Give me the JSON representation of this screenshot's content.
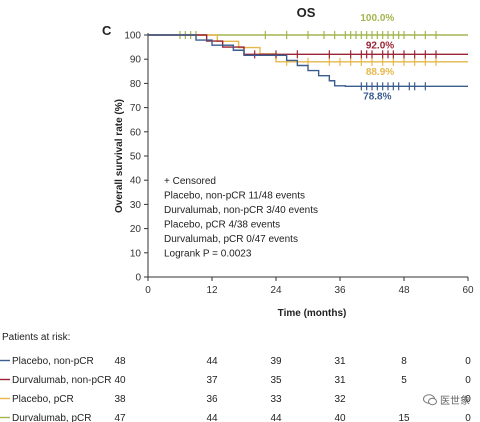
{
  "chart_data": {
    "type": "line",
    "panel_letter": "C",
    "title": "OS",
    "xlabel": "Time (months)",
    "ylabel": "Overall survival rate (%)",
    "xlim": [
      0,
      60
    ],
    "ylim": [
      0,
      100
    ],
    "xticks": [
      0,
      12,
      24,
      36,
      48,
      60
    ],
    "yticks": [
      0,
      10,
      20,
      30,
      40,
      50,
      60,
      70,
      80,
      90,
      100
    ],
    "grid": false,
    "series": [
      {
        "name": "Placebo, non-pCR",
        "color": "#3a5d8f",
        "x": [
          0,
          9,
          12,
          14,
          16,
          18,
          22,
          26,
          28,
          30,
          32,
          34,
          35,
          37,
          48,
          60
        ],
        "y": [
          100,
          97.9,
          95.8,
          95.8,
          93.7,
          91.6,
          91.6,
          89.5,
          87.4,
          85.3,
          83.2,
          81.1,
          79,
          78.8,
          78.8,
          78.8
        ],
        "end_label": "78.8%",
        "censor_x": [
          40,
          41,
          42,
          43,
          44,
          45,
          46,
          47,
          49,
          50,
          52
        ]
      },
      {
        "name": "Durvalumab, non-pCR",
        "color": "#9b2335",
        "x": [
          0,
          11,
          14,
          18,
          60
        ],
        "y": [
          100,
          97.5,
          95,
          92,
          92
        ],
        "end_label": "92.0%",
        "censor_x": [
          20,
          24,
          28,
          34,
          38,
          40,
          41,
          42,
          44,
          45,
          46,
          48,
          50,
          52,
          54
        ]
      },
      {
        "name": "Placebo, pCR",
        "color": "#e6b84c",
        "x": [
          0,
          13,
          17,
          21,
          24,
          60
        ],
        "y": [
          100,
          97.4,
          94.8,
          92.2,
          88.9,
          88.9
        ],
        "end_label": "88.9%",
        "censor_x": [
          26,
          30,
          34,
          36,
          38,
          40,
          42,
          44,
          46,
          48,
          50,
          52,
          54
        ]
      },
      {
        "name": "Durvalumab, pCR",
        "color": "#a2b54e",
        "x": [
          0,
          60
        ],
        "y": [
          100,
          100
        ],
        "end_label": "100.0%",
        "censor_x": [
          6,
          7,
          8,
          9,
          22,
          26,
          30,
          33,
          35,
          37,
          38,
          39,
          40,
          41,
          42,
          43,
          44,
          45,
          46,
          47,
          48,
          50,
          52,
          54
        ]
      }
    ],
    "annotations": [
      "+ Censored",
      "Placebo, non-pCR 11/48 events",
      "Durvalumab, non-pCR 3/40 events",
      "Placebo, pCR 4/38 events",
      "Durvalumab, pCR 0/47 events",
      "Logrank P = 0.0023"
    ],
    "risk_table": {
      "title": "Patients at risk:",
      "times": [
        0,
        12,
        24,
        36,
        48,
        60
      ],
      "rows": [
        {
          "name": "Placebo, non-pCR",
          "counts": [
            "48",
            "44",
            "39",
            "31",
            "8",
            "0"
          ]
        },
        {
          "name": "Durvalumab, non-pCR",
          "counts": [
            "40",
            "37",
            "35",
            "31",
            "5",
            "0"
          ]
        },
        {
          "name": "Placebo, pCR",
          "counts": [
            "38",
            "36",
            "33",
            "32",
            "",
            "0"
          ]
        },
        {
          "name": "Durvalumab, pCR",
          "counts": [
            "47",
            "44",
            "44",
            "40",
            "15",
            "0"
          ]
        }
      ]
    }
  },
  "watermark": {
    "text": "医世象"
  }
}
